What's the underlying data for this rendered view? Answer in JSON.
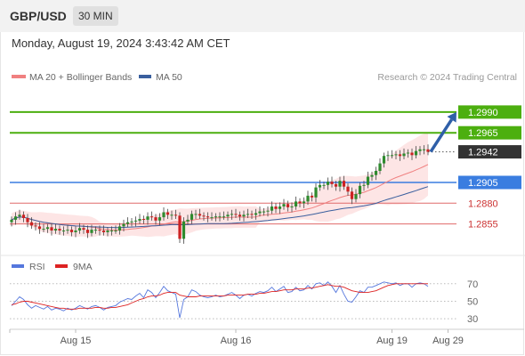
{
  "header": {
    "pair": "GBP/USD",
    "timeframe": "30 MIN"
  },
  "datetime": "Monday, August 19, 2024 3:43:42 AM CET",
  "copyright": "Research © 2024 Trading Central",
  "colors": {
    "up": "#2e8b2e",
    "down": "#cc2222",
    "ma20": "#f08080",
    "bands": "#fde0e0",
    "ma50": "#3a5f9e",
    "resistance": "#4caf0f",
    "support": "#3a7de0",
    "pivot": "#e06a6a",
    "current": "#333333",
    "rsi": "#5577dd",
    "rsi_ma": "#dd2222",
    "arrow": "#2f5fa8"
  },
  "chart_data": [
    {
      "type": "candlestick",
      "title": "",
      "legend": [
        {
          "name": "MA 20 + Bollinger Bands",
          "color": "#f08080"
        },
        {
          "name": "MA 50",
          "color": "#3a5f9e"
        }
      ],
      "legend_placement": "top-left",
      "ylim": [
        1.2818,
        1.302
      ],
      "x_ticks": [
        "Aug 15",
        "Aug 16",
        "Aug 19",
        "Aug 29"
      ],
      "x_tick_index": [
        16,
        56,
        95,
        109
      ],
      "candles_start": 1,
      "candles_close": [
        1.286,
        1.2864,
        1.2866,
        1.2862,
        1.2857,
        1.2853,
        1.2852,
        1.2849,
        1.2849,
        1.2851,
        1.2847,
        1.2849,
        1.2847,
        1.2847,
        1.2848,
        1.2845,
        1.2847,
        1.285,
        1.2848,
        1.2844,
        1.2848,
        1.2848,
        1.2847,
        1.2845,
        1.2847,
        1.2847,
        1.2847,
        1.2852,
        1.2855,
        1.2857,
        1.2858,
        1.2859,
        1.2861,
        1.286,
        1.2864,
        1.2863,
        1.2859,
        1.2863,
        1.2869,
        1.2866,
        1.2866,
        1.2865,
        1.2837,
        1.2858,
        1.286,
        1.2867,
        1.2867,
        1.2865,
        1.2864,
        1.2863,
        1.2863,
        1.2864,
        1.2864,
        1.2864,
        1.2866,
        1.2867,
        1.2866,
        1.2864,
        1.2866,
        1.2867,
        1.2866,
        1.2868,
        1.287,
        1.287,
        1.2871,
        1.2876,
        1.2873,
        1.2876,
        1.2879,
        1.2875,
        1.2876,
        1.2882,
        1.288,
        1.2882,
        1.2889,
        1.2887,
        1.2899,
        1.2902,
        1.2902,
        1.2906,
        1.2903,
        1.29,
        1.2907,
        1.29,
        1.2894,
        1.2885,
        1.2891,
        1.2901,
        1.2902,
        1.2912,
        1.2914,
        1.2919,
        1.2928,
        1.2937,
        1.2938,
        1.2938,
        1.2939,
        1.2937,
        1.294,
        1.2941,
        1.2938,
        1.2943,
        1.2945,
        1.2945,
        1.2942
      ],
      "levels": [
        {
          "name": "resistance 2",
          "value": 1.299,
          "label": "1.2990",
          "kind": "resistance"
        },
        {
          "name": "resistance 1",
          "value": 1.2965,
          "label": "1.2965",
          "kind": "resistance"
        },
        {
          "name": "current",
          "value": 1.2942,
          "label": "1.2942",
          "kind": "current"
        },
        {
          "name": "pivot",
          "value": 1.2905,
          "label": "1.2905",
          "kind": "pivot"
        },
        {
          "name": "support 1",
          "value": 1.288,
          "label": "1.2880",
          "kind": "support"
        },
        {
          "name": "support 2",
          "value": 1.2855,
          "label": "1.2855",
          "kind": "support"
        }
      ],
      "scenario": {
        "from_value": 1.2942,
        "to_value": 1.299
      }
    },
    {
      "type": "line",
      "title": "",
      "legend": [
        {
          "name": "RSI",
          "color": "#5577dd"
        },
        {
          "name": "9MA",
          "color": "#dd2222"
        }
      ],
      "ylim": [
        20,
        84
      ],
      "y_ticks": [
        70,
        50,
        30
      ],
      "series": [
        {
          "name": "RSI",
          "values": [
            45,
            50,
            55,
            52,
            46,
            42,
            45,
            43,
            41,
            44,
            40,
            42,
            41,
            39,
            42,
            40,
            42,
            45,
            43,
            41,
            44,
            45,
            43,
            40,
            43,
            44,
            45,
            49,
            51,
            53,
            52,
            56,
            59,
            54,
            63,
            60,
            54,
            60,
            67,
            62,
            60,
            58,
            31,
            52,
            55,
            63,
            61,
            57,
            55,
            54,
            55,
            57,
            55,
            56,
            58,
            60,
            57,
            53,
            57,
            58,
            56,
            59,
            61,
            60,
            62,
            66,
            61,
            64,
            67,
            60,
            61,
            66,
            62,
            63,
            68,
            64,
            70,
            71,
            68,
            72,
            67,
            60,
            68,
            58,
            50,
            49,
            55,
            62,
            60,
            66,
            66,
            68,
            70,
            72,
            71,
            70,
            71,
            68,
            70,
            70,
            66,
            70,
            71,
            70,
            67
          ]
        },
        {
          "name": "9MA",
          "values": [
            46,
            47,
            49,
            50,
            50,
            49,
            48,
            47,
            46,
            45,
            44,
            43,
            42,
            42,
            41,
            41,
            41,
            42,
            42,
            42,
            42,
            43,
            43,
            42,
            42,
            43,
            43,
            44,
            45,
            46,
            48,
            50,
            52,
            53,
            55,
            56,
            56,
            57,
            59,
            60,
            60,
            60,
            57,
            56,
            55,
            55,
            55,
            56,
            56,
            56,
            56,
            56,
            56,
            56,
            57,
            57,
            57,
            57,
            57,
            58,
            58,
            58,
            59,
            59,
            60,
            61,
            61,
            62,
            63,
            63,
            63,
            64,
            64,
            64,
            65,
            65,
            66,
            67,
            68,
            69,
            68,
            67,
            67,
            66,
            64,
            62,
            61,
            60,
            60,
            60,
            61,
            62,
            64,
            66,
            68,
            69,
            70,
            70,
            70,
            70,
            70,
            70,
            70,
            70,
            70
          ]
        }
      ]
    }
  ]
}
